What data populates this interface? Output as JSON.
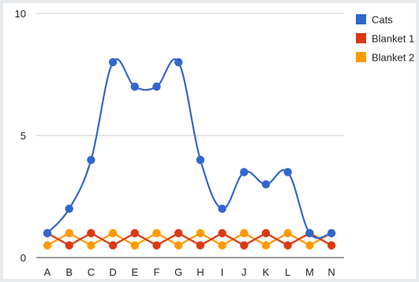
{
  "chart_data": {
    "type": "line",
    "title": "",
    "xlabel": "",
    "ylabel": "",
    "categories": [
      "A",
      "B",
      "C",
      "D",
      "E",
      "F",
      "G",
      "H",
      "I",
      "J",
      "K",
      "L",
      "M",
      "N"
    ],
    "ylim": [
      0,
      10
    ],
    "yticks": [
      0,
      5,
      10
    ],
    "grid": true,
    "legend_position": "right",
    "series": [
      {
        "name": "Cats",
        "color": "#3366cc",
        "smooth": true,
        "values": [
          1,
          2,
          4,
          8,
          7,
          7,
          8,
          4,
          2,
          3.5,
          3,
          3.5,
          1,
          1
        ]
      },
      {
        "name": "Blanket 1",
        "color": "#dc3912",
        "smooth": false,
        "values": [
          1,
          0.5,
          1,
          0.5,
          1,
          0.5,
          1,
          0.5,
          1,
          0.5,
          1,
          0.5,
          1,
          0.5
        ]
      },
      {
        "name": "Blanket 2",
        "color": "#ff9900",
        "smooth": false,
        "values": [
          0.5,
          1,
          0.5,
          1,
          0.5,
          1,
          0.5,
          1,
          0.5,
          1,
          0.5,
          1,
          0.5,
          1
        ]
      }
    ]
  }
}
